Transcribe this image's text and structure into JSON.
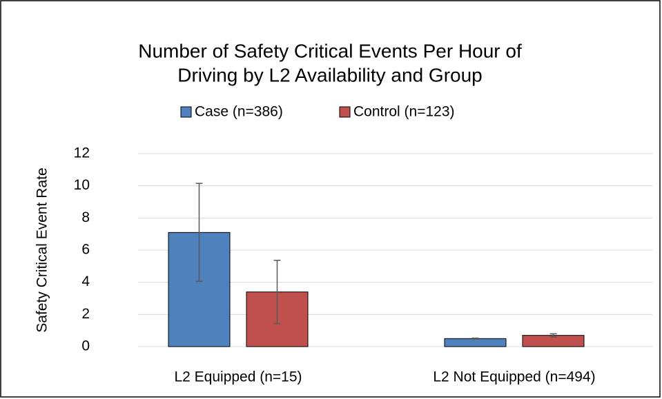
{
  "chart_data": {
    "type": "bar",
    "title": [
      "Number of Safety Critical Events Per Hour of",
      "Driving by L2 Availability and Group"
    ],
    "y_label": "Safety Critical Event Rate",
    "categories": [
      "L2 Equipped (n=15)",
      "L2 Not Equipped (n=494)"
    ],
    "series": [
      {
        "name": "Case (n=386)",
        "color": "#4f81bd",
        "values": [
          7.1,
          0.5
        ],
        "errors": [
          3.05,
          0.03
        ]
      },
      {
        "name": "Control (n=123)",
        "color": "#c0504d",
        "values": [
          3.4,
          0.7
        ],
        "errors": [
          1.97,
          0.1
        ]
      }
    ],
    "ylim": [
      0,
      12
    ],
    "yticks": [
      0,
      2,
      4,
      6,
      8,
      10,
      12
    ],
    "grid": true,
    "legend": "top"
  }
}
